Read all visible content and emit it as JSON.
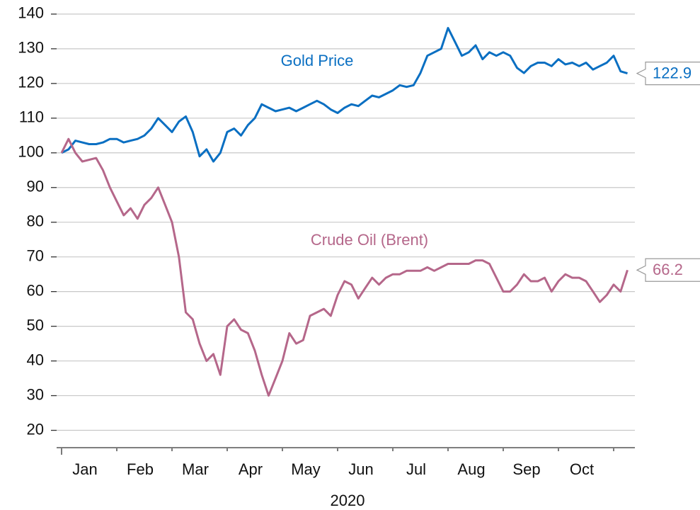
{
  "chart_data": {
    "type": "line",
    "xlabel": "2020",
    "categories": [
      null,
      null,
      null,
      null,
      "Jan",
      null,
      null,
      null,
      null,
      null,
      null,
      null,
      "Feb",
      null,
      null,
      null,
      null,
      null,
      null,
      null,
      "Mar",
      null,
      null,
      null,
      null,
      null,
      null,
      null,
      "Apr",
      null,
      null,
      null,
      null,
      null,
      null,
      null,
      "May",
      null,
      null,
      null,
      null,
      null,
      null,
      null,
      "Jun",
      null,
      null,
      null,
      null,
      null,
      null,
      null,
      "Jul",
      null,
      null,
      null,
      null,
      null,
      null,
      null,
      "Aug",
      null,
      null,
      null,
      null,
      null,
      null,
      null,
      "Sep",
      null,
      null,
      null,
      null,
      null,
      null,
      null,
      "Oct",
      null,
      null,
      null,
      null,
      null,
      null
    ],
    "series": [
      {
        "name": "Gold Price",
        "color": "#0a6fc2",
        "last_label": "122.9",
        "values": [
          100,
          101,
          103.5,
          103,
          102.5,
          102.5,
          103,
          104,
          104,
          103,
          103.5,
          104,
          105,
          107,
          110,
          108,
          106,
          109,
          110.5,
          106,
          99,
          101,
          97.5,
          100,
          106,
          107,
          105,
          108,
          110,
          114,
          113,
          112,
          112.5,
          113,
          112,
          113,
          114,
          115,
          114,
          112.5,
          111.5,
          113,
          114,
          113.5,
          115,
          116.5,
          116,
          117,
          118,
          119.5,
          119,
          119.5,
          123,
          128,
          129,
          130,
          136,
          132,
          128,
          129,
          131,
          127,
          129,
          128,
          129,
          128,
          124.5,
          123,
          125,
          126,
          126,
          125,
          127,
          125.5,
          126,
          125,
          126,
          124,
          125,
          126,
          128,
          123.5,
          122.9
        ]
      },
      {
        "name": "Crude Oil (Brent)",
        "color": "#b5678a",
        "last_label": "66.2",
        "values": [
          100,
          104,
          100,
          97.5,
          98,
          98.5,
          95,
          90,
          86,
          82,
          84,
          81,
          85,
          87,
          90,
          85,
          80,
          70,
          54,
          52,
          45,
          40,
          42,
          36,
          50,
          52,
          49,
          48,
          43,
          36,
          30,
          35,
          40,
          48,
          45,
          46,
          53,
          54,
          55,
          53,
          59,
          63,
          62,
          58,
          61,
          64,
          62,
          64,
          65,
          65,
          66,
          66,
          66,
          67,
          66,
          67,
          68,
          68,
          68,
          68,
          69,
          69,
          68,
          64,
          60,
          60,
          62,
          65,
          63,
          63,
          64,
          60,
          63,
          65,
          64,
          64,
          63,
          60,
          57,
          59,
          62,
          60,
          66.2
        ]
      }
    ],
    "ylim": [
      15,
      141
    ],
    "yticks": [
      20,
      30,
      40,
      50,
      60,
      70,
      80,
      90,
      100,
      110,
      120,
      130,
      140
    ],
    "grid": true
  }
}
